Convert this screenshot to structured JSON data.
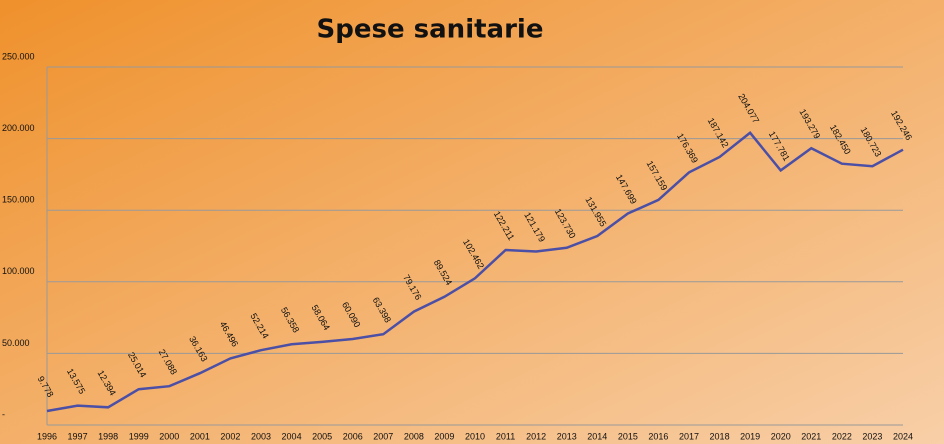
{
  "chart_data": {
    "type": "line",
    "title": "Spese sanitarie",
    "categories": [
      "1996",
      "1997",
      "1998",
      "1999",
      "2000",
      "2001",
      "2002",
      "2003",
      "2004",
      "2005",
      "2006",
      "2007",
      "2008",
      "2009",
      "2010",
      "2011",
      "2012",
      "2013",
      "2014",
      "2015",
      "2016",
      "2017",
      "2018",
      "2019",
      "2020",
      "2021",
      "2022",
      "2023",
      "2024"
    ],
    "values": [
      9778,
      13575,
      12394,
      25014,
      27088,
      36163,
      46496,
      52214,
      56358,
      58064,
      60090,
      63398,
      79176,
      89524,
      102462,
      122211,
      121179,
      123730,
      131955,
      147699,
      157159,
      176369,
      187142,
      204077,
      177781,
      193279,
      182450,
      180723,
      192246
    ],
    "value_labels": [
      "9.778",
      "13.575",
      "12.394",
      "25.014",
      "27.088",
      "36.163",
      "46.496",
      "52.214",
      "56.358",
      "58.064",
      "60.090",
      "63.398",
      "79.176",
      "89.524",
      "102.462",
      "122.211",
      "121.179",
      "123.730",
      "131.955",
      "147.699",
      "157.159",
      "176.369",
      "187.142",
      "204.077",
      "177.781",
      "193.279",
      "182.450",
      "180.723",
      "192.246"
    ],
    "color": "#4b4fa6",
    "ylim": [
      0,
      250000
    ],
    "yticks": [
      {
        "value": 0,
        "label": "-"
      },
      {
        "value": 50000,
        "label": "50.000"
      },
      {
        "value": 100000,
        "label": "100.000"
      },
      {
        "value": 150000,
        "label": "150.000"
      },
      {
        "value": 200000,
        "label": "200.000"
      },
      {
        "value": 250000,
        "label": "250.000"
      }
    ],
    "grid": true
  }
}
